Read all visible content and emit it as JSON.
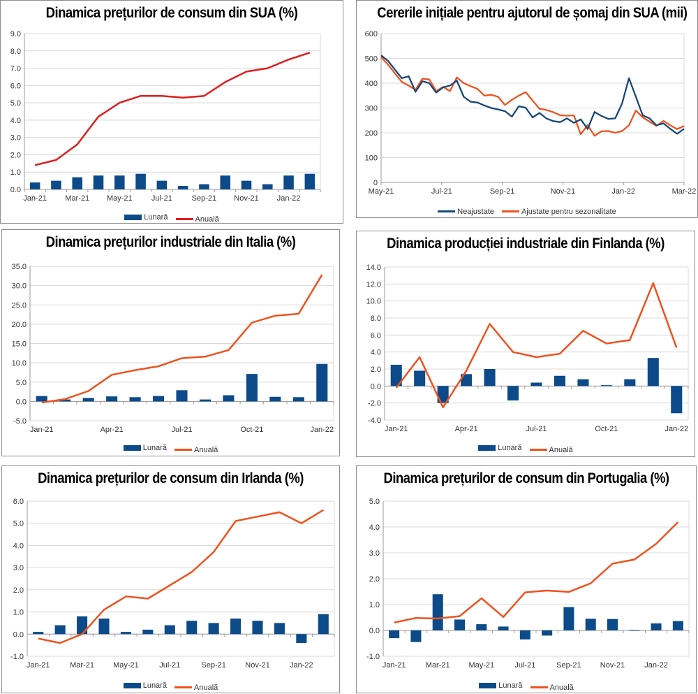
{
  "colors": {
    "bar": "#0c4a8a",
    "line_red": "#e01d1d",
    "line_orange": "#f0521e",
    "line_navy": "#17497a",
    "grid": "#d8d8d8",
    "axis": "#999999"
  },
  "chart_data": [
    {
      "id": "us-cpi",
      "type": "bar+line",
      "title": "Dinamica prețurilor de consum din SUA (%)",
      "categories": [
        "Jan-21",
        "Feb-21",
        "Mar-21",
        "Apr-21",
        "May-21",
        "Jun-21",
        "Jul-21",
        "Aug-21",
        "Sep-21",
        "Oct-21",
        "Nov-21",
        "Dec-21",
        "Jan-22",
        "Feb-22"
      ],
      "tick_labels": [
        "Jan-21",
        "Mar-21",
        "May-21",
        "Jul-21",
        "Sep-21",
        "Nov-21",
        "Jan-22"
      ],
      "y_ticks": [
        "0.0",
        "1.0",
        "2.0",
        "3.0",
        "4.0",
        "5.0",
        "6.0",
        "7.0",
        "8.0",
        "9.0"
      ],
      "ylim": [
        0,
        9
      ],
      "grid": true,
      "legend_position": "bottom",
      "series": [
        {
          "name": "Lunară",
          "kind": "bar",
          "color_key": "bar",
          "values": [
            0.4,
            0.5,
            0.7,
            0.8,
            0.8,
            0.9,
            0.5,
            0.2,
            0.3,
            0.8,
            0.5,
            0.3,
            0.8,
            0.9
          ]
        },
        {
          "name": "Anuală",
          "kind": "line",
          "color_key": "line_red",
          "values": [
            1.4,
            1.7,
            2.6,
            4.2,
            5.0,
            5.4,
            5.4,
            5.3,
            5.4,
            6.2,
            6.8,
            7.0,
            7.5,
            7.9
          ]
        }
      ]
    },
    {
      "id": "us-claims",
      "type": "line",
      "title": "Cererile inițiale pentru ajutorul de șomaj din SUA (mii)",
      "x_range": [
        "May-21",
        "Mar-22"
      ],
      "tick_labels": [
        "May-21",
        "Jul-21",
        "Sep-21",
        "Nov-21",
        "Jan-22",
        "Mar-22"
      ],
      "y_ticks": [
        "0",
        "100",
        "200",
        "300",
        "400",
        "500",
        "600"
      ],
      "ylim": [
        0,
        600
      ],
      "grid": true,
      "legend_position": "bottom",
      "series": [
        {
          "name": "Neajustate",
          "kind": "line",
          "color_key": "line_navy",
          "values": [
            512,
            490,
            455,
            420,
            428,
            365,
            408,
            400,
            362,
            383,
            390,
            410,
            345,
            325,
            322,
            310,
            300,
            294,
            287,
            265,
            307,
            301,
            262,
            280,
            258,
            247,
            243,
            258,
            240,
            254,
            215,
            284,
            268,
            256,
            258,
            318,
            420,
            345,
            270,
            258,
            230,
            238,
            216,
            196,
            216
          ]
        },
        {
          "name": "Ajustate pentru sezonalitate",
          "kind": "line",
          "color_key": "line_orange",
          "values": [
            505,
            475,
            440,
            405,
            390,
            373,
            418,
            415,
            368,
            385,
            368,
            423,
            400,
            388,
            377,
            350,
            353,
            345,
            312,
            333,
            350,
            364,
            330,
            297,
            292,
            283,
            271,
            269,
            270,
            194,
            231,
            188,
            206,
            207,
            200,
            207,
            230,
            290,
            262,
            245,
            228,
            248,
            230,
            215,
            227
          ]
        }
      ]
    },
    {
      "id": "italy-ppi",
      "type": "bar+line",
      "title": "Dinamica prețurilor industriale din Italia (%)",
      "categories": [
        "Jan-21",
        "Feb-21",
        "Mar-21",
        "Apr-21",
        "May-21",
        "Jun-21",
        "Jul-21",
        "Aug-21",
        "Sep-21",
        "Oct-21",
        "Nov-21",
        "Dec-21",
        "Jan-22"
      ],
      "tick_labels": [
        "Jan-21",
        "Apr-21",
        "Jul-21",
        "Oct-21",
        "Jan-22"
      ],
      "y_ticks": [
        "-5.0",
        "0.0",
        "5.0",
        "10.0",
        "15.0",
        "20.0",
        "25.0",
        "30.0",
        "35.0"
      ],
      "ylim": [
        -5,
        35
      ],
      "grid": true,
      "legend_position": "bottom",
      "series": [
        {
          "name": "Lunară",
          "kind": "bar",
          "color_key": "bar",
          "values": [
            1.4,
            0.5,
            0.9,
            1.3,
            1.1,
            1.4,
            2.9,
            0.5,
            1.6,
            7.1,
            1.2,
            1.1,
            9.7
          ]
        },
        {
          "name": "Anuală",
          "kind": "line",
          "color_key": "line_orange",
          "values": [
            -0.3,
            0.6,
            2.7,
            6.9,
            8.1,
            9.1,
            11.2,
            11.6,
            13.3,
            20.4,
            22.2,
            22.7,
            32.8
          ]
        }
      ]
    },
    {
      "id": "finland-ip",
      "type": "bar+line",
      "title": "Dinamica producției industriale din Finlanda (%)",
      "categories": [
        "Jan-21",
        "Feb-21",
        "Mar-21",
        "Apr-21",
        "May-21",
        "Jun-21",
        "Jul-21",
        "Aug-21",
        "Sep-21",
        "Oct-21",
        "Nov-21",
        "Dec-21",
        "Jan-22"
      ],
      "tick_labels": [
        "Jan-21",
        "Apr-21",
        "Jul-21",
        "Oct-21",
        "Jan-22"
      ],
      "y_ticks": [
        "-4.0",
        "-2.0",
        "0.0",
        "2.0",
        "4.0",
        "6.0",
        "8.0",
        "10.0",
        "12.0",
        "14.0"
      ],
      "ylim": [
        -4,
        14
      ],
      "grid": true,
      "legend_position": "bottom",
      "series": [
        {
          "name": "Lunară",
          "kind": "bar",
          "color_key": "bar",
          "values": [
            2.5,
            1.8,
            -2.0,
            1.4,
            2.0,
            -1.7,
            0.4,
            1.2,
            0.8,
            0.1,
            0.8,
            3.3,
            -3.2
          ]
        },
        {
          "name": "Anuală",
          "kind": "line",
          "color_key": "line_orange",
          "values": [
            -0.2,
            3.4,
            -2.5,
            1.8,
            7.3,
            4.0,
            3.4,
            3.8,
            6.5,
            5.0,
            5.4,
            12.1,
            4.5
          ]
        }
      ]
    },
    {
      "id": "ireland-cpi",
      "type": "bar+line",
      "title": "Dinamica prețurilor de consum din Irlanda (%)",
      "categories": [
        "Jan-21",
        "Feb-21",
        "Mar-21",
        "Apr-21",
        "May-21",
        "Jun-21",
        "Jul-21",
        "Aug-21",
        "Sep-21",
        "Oct-21",
        "Nov-21",
        "Dec-21",
        "Jan-22",
        "Feb-22"
      ],
      "tick_labels": [
        "Jan-21",
        "Mar-21",
        "May-21",
        "Jul-21",
        "Sep-21",
        "Nov-21",
        "Jan-22"
      ],
      "y_ticks": [
        "-1.0",
        "0.0",
        "1.0",
        "2.0",
        "3.0",
        "4.0",
        "5.0",
        "6.0"
      ],
      "ylim": [
        -1,
        6
      ],
      "grid": true,
      "legend_position": "bottom",
      "series": [
        {
          "name": "Lunară",
          "kind": "bar",
          "color_key": "bar",
          "values": [
            0.1,
            0.4,
            0.8,
            0.7,
            0.1,
            0.2,
            0.4,
            0.6,
            0.5,
            0.7,
            0.6,
            0.5,
            -0.4,
            0.9
          ]
        },
        {
          "name": "Anuală",
          "kind": "line",
          "color_key": "line_orange",
          "values": [
            -0.2,
            -0.4,
            0.0,
            1.1,
            1.7,
            1.6,
            2.2,
            2.8,
            3.7,
            5.1,
            5.3,
            5.5,
            5.0,
            5.6
          ]
        }
      ]
    },
    {
      "id": "portugal-cpi",
      "type": "bar+line",
      "title": "Dinamica prețurilor de consum din Portugalia (%)",
      "categories": [
        "Jan-21",
        "Feb-21",
        "Mar-21",
        "Apr-21",
        "May-21",
        "Jun-21",
        "Jul-21",
        "Aug-21",
        "Sep-21",
        "Oct-21",
        "Nov-21",
        "Dec-21",
        "Jan-22",
        "Feb-22"
      ],
      "tick_labels": [
        "Jan-21",
        "Mar-21",
        "May-21",
        "Jul-21",
        "Sep-21",
        "Nov-21",
        "Jan-22"
      ],
      "y_ticks": [
        "-1.0",
        "0.0",
        "1.0",
        "2.0",
        "3.0",
        "4.0",
        "5.0"
      ],
      "ylim": [
        -1,
        5
      ],
      "grid": true,
      "legend_position": "bottom",
      "series": [
        {
          "name": "Lunară",
          "kind": "bar",
          "color_key": "bar",
          "values": [
            -0.3,
            -0.45,
            1.4,
            0.42,
            0.24,
            0.15,
            -0.35,
            -0.2,
            0.9,
            0.45,
            0.44,
            0.01,
            0.27,
            0.36
          ]
        },
        {
          "name": "Anuală",
          "kind": "line",
          "color_key": "line_orange",
          "values": [
            0.3,
            0.48,
            0.46,
            0.55,
            1.24,
            0.52,
            1.47,
            1.54,
            1.49,
            1.82,
            2.58,
            2.74,
            3.35,
            4.19
          ]
        }
      ]
    }
  ]
}
